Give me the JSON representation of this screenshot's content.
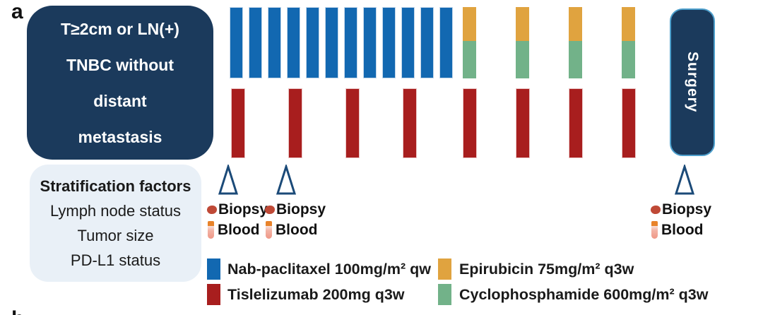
{
  "panel_labels": {
    "a": "a",
    "b": "b"
  },
  "eligibility": {
    "lines": [
      "T≥2cm or LN(+)",
      "TNBC without",
      "distant",
      "metastasis"
    ]
  },
  "stratification": {
    "title": "Stratification factors",
    "factors": [
      "Lymph node status",
      "Tumor size",
      "PD-L1 status"
    ]
  },
  "surgery": {
    "label": "Surgery"
  },
  "assessments": {
    "timepoints": 3,
    "biopsy_label": "Biopsy",
    "blood_label": "Blood"
  },
  "treatment_bars": {
    "nab_paclitaxel": {
      "doses": 12,
      "color": "#1268b1"
    },
    "tislelizumab": {
      "doses": 8,
      "color": "#a81e1e"
    },
    "epirubicin": {
      "doses": 4,
      "color": "#e0a33f"
    },
    "cyclophosphamide": {
      "doses": 4,
      "color": "#72b289"
    }
  },
  "legend": {
    "items": [
      {
        "name": "nab-paclitaxel",
        "label": "Nab-paclitaxel 100mg/m² qw",
        "color": "#1268b1"
      },
      {
        "name": "tislelizumab",
        "label": "Tislelizumab 200mg q3w",
        "color": "#a81e1e"
      },
      {
        "name": "epirubicin",
        "label": "Epirubicin 75mg/m² q3w",
        "color": "#e0a33f"
      },
      {
        "name": "cyclophosphamide",
        "label": "Cyclophosphamide 600mg/m² q3w",
        "color": "#72b289"
      }
    ]
  },
  "colors": {
    "navy_box": "#1b3a5c",
    "light_box": "#e9f0f7",
    "triangle_stroke": "#1b4a78",
    "biopsy_dot": "#bf4936",
    "blood_cap": "#e8832a",
    "blood_body": "#ef9786",
    "surgery_border": "#4d9fcc"
  }
}
